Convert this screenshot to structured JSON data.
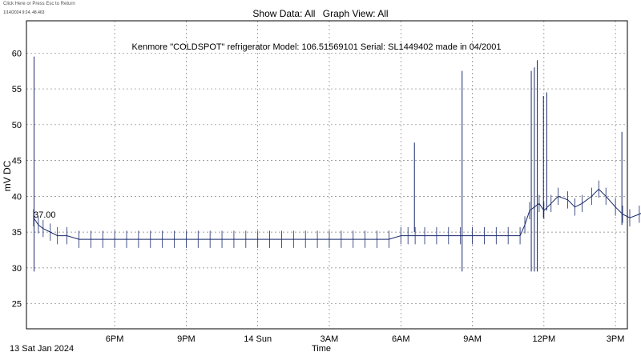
{
  "top_hint": "Click Here or Press Esc to Return",
  "timestamp_readout": "1/14/2024 9:24, 48.463",
  "header": {
    "show_data": "Show Data: All",
    "graph_view": "Graph View: All"
  },
  "colors": {
    "trace": "#1a2a6b",
    "grid": "#808080",
    "frame": "#000000"
  },
  "chart_data": {
    "type": "line",
    "title": "Kenmore \"COLDSPOT\" refrigerator Model: 106.51569101 Serial: SL1449402 made in 04/2001",
    "ylabel": "mV DC",
    "xlabel": "Time",
    "date_label": "13 Sat Jan 2024",
    "marker_label": "37.00",
    "marker_value": 37.0,
    "grid": true,
    "ylim": [
      21.5,
      64.5
    ],
    "yticks": [
      25,
      30,
      35,
      40,
      45,
      50,
      55,
      60
    ],
    "x_hour_range": [
      14.3,
      39.5
    ],
    "x_ticks": [
      {
        "label": "6PM",
        "hour": 18
      },
      {
        "label": "9PM",
        "hour": 21
      },
      {
        "label": "14 Sun",
        "hour": 24
      },
      {
        "label": "3AM",
        "hour": 27
      },
      {
        "label": "6AM",
        "hour": 30
      },
      {
        "label": "9AM",
        "hour": 33
      },
      {
        "label": "12PM",
        "hour": 36
      },
      {
        "label": "3PM",
        "hour": 39
      }
    ],
    "series": [
      {
        "values_note_x_hours_since_midnight_jan13": true,
        "x": [
          14.6,
          14.8,
          15.0,
          15.3,
          15.6,
          16.0,
          16.5,
          17.0,
          17.5,
          18.0,
          18.5,
          19.0,
          19.5,
          20.0,
          20.5,
          21.0,
          21.5,
          22.0,
          22.5,
          23.0,
          23.5,
          24.0,
          24.5,
          25.0,
          25.5,
          26.0,
          26.5,
          27.0,
          27.5,
          28.0,
          28.5,
          29.0,
          29.5,
          30.0,
          30.3,
          30.6,
          31.0,
          31.5,
          32.0,
          32.5,
          33.0,
          33.5,
          34.0,
          34.5,
          35.0,
          35.2,
          35.4,
          35.6,
          35.8,
          36.0,
          36.3,
          36.6,
          37.0,
          37.3,
          37.6,
          38.0,
          38.3,
          38.6,
          39.0,
          39.3,
          39.6,
          40.0,
          40.3,
          40.6,
          41.0
        ],
        "y": [
          37.0,
          36.0,
          35.5,
          35.0,
          34.5,
          34.5,
          34.0,
          34.0,
          34.0,
          34.0,
          34.0,
          34.0,
          34.0,
          34.0,
          34.0,
          34.0,
          34.0,
          34.0,
          34.0,
          34.0,
          34.0,
          34.0,
          34.0,
          34.0,
          34.0,
          34.0,
          34.0,
          34.0,
          34.0,
          34.0,
          34.0,
          34.0,
          34.0,
          34.5,
          34.5,
          34.5,
          34.5,
          34.5,
          34.5,
          34.5,
          34.5,
          34.5,
          34.5,
          34.5,
          34.5,
          36.0,
          38.0,
          38.5,
          39.0,
          38.0,
          39.0,
          40.0,
          39.5,
          38.5,
          39.0,
          40.0,
          41.0,
          40.0,
          38.5,
          37.5,
          37.0,
          37.5,
          38.0,
          37.5,
          37.0
        ]
      }
    ],
    "spikes": [
      {
        "hour": 14.62,
        "max": 59.5,
        "min": 29.5
      },
      {
        "hour": 30.57,
        "max": 47.5,
        "min": 35.0
      },
      {
        "hour": 32.57,
        "max": 57.5,
        "min": 29.5
      },
      {
        "hour": 35.47,
        "max": 57.5,
        "min": 29.5
      },
      {
        "hour": 35.6,
        "max": 58.0,
        "min": 29.5
      },
      {
        "hour": 35.72,
        "max": 59.0,
        "min": 29.5
      },
      {
        "hour": 35.98,
        "max": 54.0,
        "min": 37.0
      },
      {
        "hour": 36.12,
        "max": 54.5,
        "min": 38.0
      },
      {
        "hour": 39.27,
        "max": 49.0,
        "min": 36.0
      }
    ]
  }
}
